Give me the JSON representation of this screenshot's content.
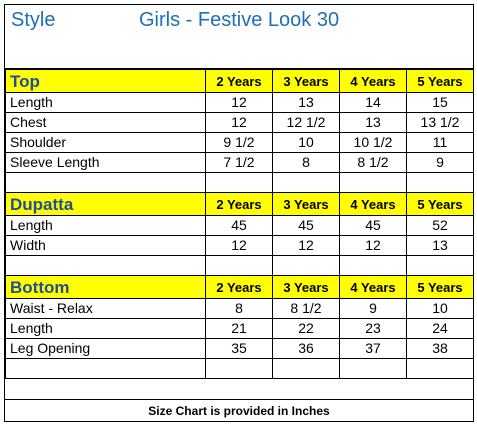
{
  "header": {
    "style_label": "Style",
    "title": "Girls  - Festive Look 30"
  },
  "sizes": [
    "2 Years",
    "3 Years",
    "4 Years",
    "5 Years"
  ],
  "sections": [
    {
      "title": "Top",
      "rows": [
        {
          "label": "Length",
          "values": [
            "12",
            "13",
            "14",
            "15"
          ]
        },
        {
          "label": "Chest",
          "values": [
            "12",
            "12 1/2",
            "13",
            "13 1/2"
          ]
        },
        {
          "label": "Shoulder",
          "values": [
            "9 1/2",
            "10",
            "10 1/2",
            "11"
          ]
        },
        {
          "label": "Sleeve Length",
          "values": [
            "7 1/2",
            "8",
            "8 1/2",
            "9"
          ]
        }
      ]
    },
    {
      "title": "Dupatta",
      "rows": [
        {
          "label": "Length",
          "values": [
            "45",
            "45",
            "45",
            "52"
          ]
        },
        {
          "label": "Width",
          "values": [
            "12",
            "12",
            "12",
            "13"
          ]
        }
      ]
    },
    {
      "title": "Bottom",
      "rows": [
        {
          "label": "Waist   - Relax",
          "values": [
            "8",
            "8 1/2",
            "9",
            "10"
          ]
        },
        {
          "label": "Length",
          "values": [
            "21",
            "22",
            "23",
            "24"
          ]
        },
        {
          "label": "Leg Opening",
          "values": [
            "35",
            "36",
            "37",
            "38"
          ]
        }
      ]
    }
  ],
  "footer": "Size Chart is provided in Inches",
  "colors": {
    "header_text": "#1f6fb5",
    "section_fill": "#ffff00",
    "section_title": "#1f4e9a"
  }
}
